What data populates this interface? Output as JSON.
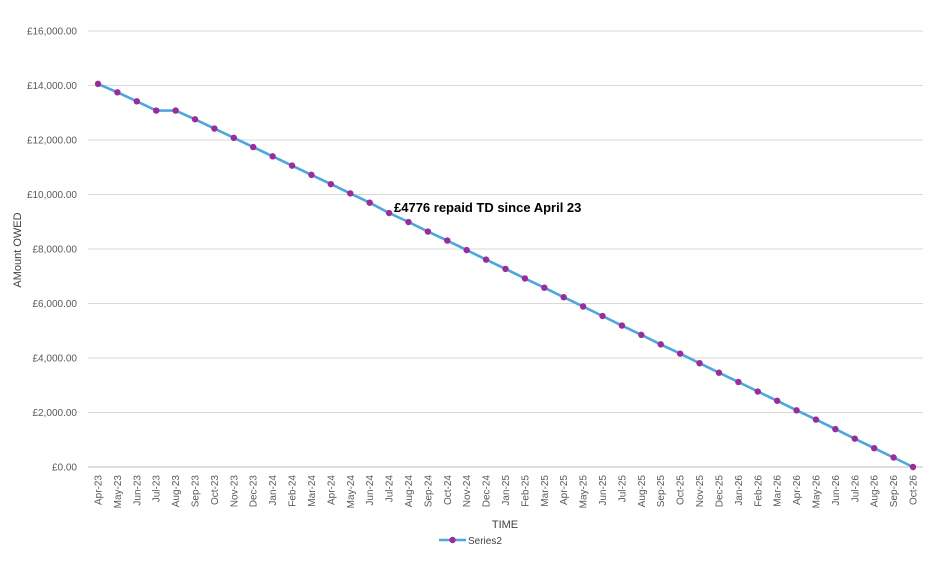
{
  "chart_data": {
    "type": "line",
    "title": "",
    "xlabel": "TIME",
    "ylabel": "AMount OWED",
    "ylim": [
      0,
      16000
    ],
    "y_ticks": [
      0,
      2000,
      4000,
      6000,
      8000,
      10000,
      12000,
      14000,
      16000
    ],
    "y_tick_labels": [
      "£0.00",
      "£2,000.00",
      "£4,000.00",
      "£6,000.00",
      "£8,000.00",
      "£10,000.00",
      "£12,000.00",
      "£14,000.00",
      "£16,000.00"
    ],
    "grid": true,
    "legend_position": "bottom",
    "annotation": "£4776 repaid TD since April 23",
    "categories": [
      "Apr-23",
      "May-23",
      "Jun-23",
      "Jul-23",
      "Aug-23",
      "Sep-23",
      "Oct-23",
      "Nov-23",
      "Dec-23",
      "Jan-24",
      "Feb-24",
      "Mar-24",
      "Apr-24",
      "May-24",
      "Jun-24",
      "Jul-24",
      "Aug-24",
      "Sep-24",
      "Oct-24",
      "Nov-24",
      "Dec-24",
      "Jan-25",
      "Feb-25",
      "Mar-25",
      "Apr-25",
      "May-25",
      "Jun-25",
      "Jul-25",
      "Aug-25",
      "Sep-25",
      "Oct-25",
      "Nov-25",
      "Dec-25",
      "Jan-26",
      "Feb-26",
      "Mar-26",
      "Apr-26",
      "May-26",
      "Jun-26",
      "Jul-26",
      "Aug-26",
      "Sep-26",
      "Oct-26"
    ],
    "series": [
      {
        "name": "Series2",
        "line_color": "#4EA6DC",
        "marker_color": "#9B2C9B",
        "values": [
          14060,
          13750,
          13420,
          13080,
          13080,
          12760,
          12420,
          12080,
          11740,
          11400,
          11060,
          10720,
          10380,
          10040,
          9700,
          9320,
          8990,
          8640,
          8310,
          7960,
          7610,
          7270,
          6920,
          6580,
          6230,
          5890,
          5540,
          5190,
          4850,
          4500,
          4160,
          3810,
          3460,
          3120,
          2770,
          2430,
          2080,
          1740,
          1390,
          1040,
          690,
          350,
          0
        ]
      }
    ]
  }
}
